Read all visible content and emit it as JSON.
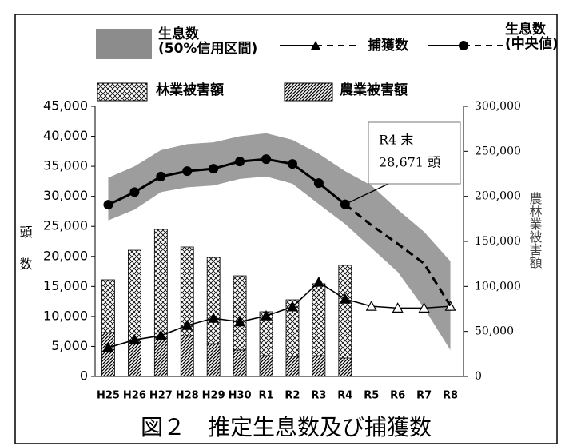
{
  "chart_data": {
    "type": "combo",
    "title": "図２　推定生息数及び捕獲数",
    "ylabel": "頭数",
    "y2label": "農林業被害額",
    "categories": [
      "H25",
      "H26",
      "H27",
      "H28",
      "H29",
      "H30",
      "R1",
      "R2",
      "R3",
      "R4",
      "R5",
      "R6",
      "R7",
      "R8"
    ],
    "ylim": [
      0,
      45000
    ],
    "yticks": [
      0,
      {
        "value": 5000,
        "label": "5,000"
      },
      {
        "value": 10000,
        "label": "10,000"
      },
      {
        "value": 15000,
        "label": "15,000"
      },
      {
        "value": 20000,
        "label": "20,000"
      },
      {
        "value": 25000,
        "label": "25,000"
      },
      {
        "value": 30000,
        "label": "30,000"
      },
      {
        "value": 35000,
        "label": "35,000"
      },
      {
        "value": 40000,
        "label": "40,000"
      },
      {
        "value": 45000,
        "label": "45,000"
      }
    ],
    "y2lim": [
      0,
      300000
    ],
    "y2ticks": [
      0,
      {
        "value": 50000,
        "label": "50,000"
      },
      {
        "value": 100000,
        "label": "100,000"
      },
      {
        "value": 150000,
        "label": "150,000"
      },
      {
        "value": 200000,
        "label": "200,000"
      },
      {
        "value": 250000,
        "label": "250,000"
      },
      {
        "value": 300000,
        "label": "300,000"
      }
    ],
    "forecast_from": "R4",
    "annotation": {
      "lines": [
        "R4 末",
        "28,671 頭"
      ],
      "category": "R4"
    },
    "series": [
      {
        "name": "生息数\n(50%信用区間)",
        "kind": "band",
        "color": "#8c8c8c",
        "upper": [
          33100,
          35000,
          37700,
          38700,
          39000,
          40000,
          40500,
          39400,
          37100,
          34200,
          31800,
          27800,
          24100,
          19200
        ],
        "lower": [
          26000,
          27800,
          30700,
          31500,
          31800,
          32900,
          33300,
          32100,
          28700,
          25400,
          21400,
          17400,
          11400,
          4400
        ]
      },
      {
        "name": "捕獲数",
        "kind": "line",
        "marker": "triangle",
        "color": "#000000",
        "values": [
          4800,
          6100,
          6800,
          8500,
          9700,
          9100,
          10100,
          11600,
          15700,
          12900,
          11700,
          11400,
          11400,
          11700
        ]
      },
      {
        "name": "生息数\n(中央値)",
        "kind": "line",
        "marker": "circle",
        "color": "#000000",
        "values": [
          28600,
          30700,
          33300,
          34200,
          34600,
          35800,
          36200,
          35400,
          32200,
          28671,
          25200,
          22100,
          18800,
          11800
        ]
      },
      {
        "name": "林業被害額",
        "kind": "bar",
        "pattern": "cross",
        "axis": "y2",
        "values": [
          58600,
          102000,
          120700,
          98500,
          95800,
          82500,
          48800,
          63000,
          79900,
          103000,
          null,
          null,
          null,
          null
        ]
      },
      {
        "name": "農業被害額",
        "kind": "bar",
        "pattern": "diag",
        "axis": "y2",
        "values": [
          48800,
          38200,
          42600,
          45300,
          36400,
          29300,
          23100,
          22200,
          23100,
          20400,
          null,
          null,
          null,
          null
        ]
      }
    ]
  }
}
